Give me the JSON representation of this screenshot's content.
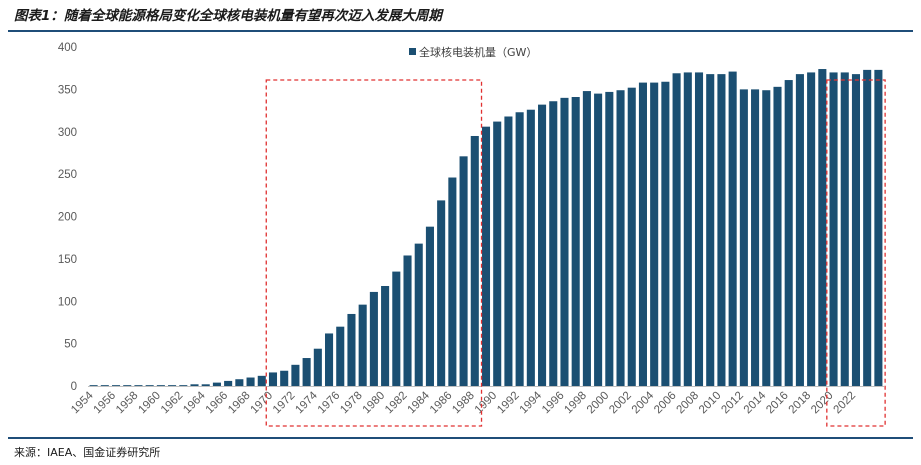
{
  "header": {
    "title": "图表1：随着全球能源格局变化全球核电装机量有望再次迈入发展大周期"
  },
  "footer": {
    "source": "来源：IAEA、国金证券研究所"
  },
  "chart_data": {
    "type": "bar",
    "title": "",
    "xlabel": "",
    "ylabel": "",
    "ylim": [
      0,
      400
    ],
    "yticks": [
      0,
      50,
      100,
      150,
      200,
      250,
      300,
      350,
      400
    ],
    "grid": false,
    "legend_position": "top-center",
    "bar_color": "#1b4f72",
    "highlight_color": "#e03030",
    "series": [
      {
        "name": "全球核电装机量（GW）",
        "values": [
          1,
          1,
          1,
          1,
          1,
          1,
          1,
          1,
          1,
          2,
          2,
          4,
          6,
          8,
          10,
          12,
          16,
          18,
          25,
          33,
          44,
          62,
          70,
          85,
          96,
          111,
          118,
          135,
          154,
          168,
          188,
          219,
          246,
          271,
          295,
          306,
          312,
          318,
          323,
          326,
          332,
          336,
          340,
          341,
          348,
          345,
          347,
          349,
          352,
          358,
          358,
          359,
          369,
          370,
          370,
          368,
          368,
          371,
          350,
          350,
          349,
          353,
          361,
          368,
          370,
          374,
          370,
          370,
          368,
          373,
          373
        ]
      }
    ],
    "categories": [
      "1954",
      "1955",
      "1956",
      "1957",
      "1958",
      "1959",
      "1960",
      "1961",
      "1962",
      "1963",
      "1964",
      "1965",
      "1966",
      "1967",
      "1968",
      "1969",
      "1970",
      "1971",
      "1972",
      "1973",
      "1974",
      "1975",
      "1976",
      "1977",
      "1978",
      "1979",
      "1980",
      "1981",
      "1982",
      "1983",
      "1984",
      "1985",
      "1986",
      "1987",
      "1988",
      "1989",
      "1990",
      "1991",
      "1992",
      "1993",
      "1994",
      "1995",
      "1996",
      "1997",
      "1998",
      "1999",
      "2000",
      "2001",
      "2002",
      "2003",
      "2004",
      "2005",
      "2006",
      "2007",
      "2008",
      "2009",
      "2010",
      "2011",
      "2012",
      "2013",
      "2014",
      "2015",
      "2016",
      "2017",
      "2018",
      "2019",
      "2020",
      "2021",
      "2022",
      "2023",
      "2024"
    ],
    "x_tick_labels": [
      "1954",
      "1956",
      "1958",
      "1960",
      "1962",
      "1964",
      "1966",
      "1968",
      "1970",
      "1972",
      "1974",
      "1976",
      "1978",
      "1980",
      "1982",
      "1984",
      "1986",
      "1988",
      "1990",
      "1992",
      "1994",
      "1996",
      "1998",
      "2000",
      "2002",
      "2004",
      "2006",
      "2008",
      "2010",
      "2012",
      "2014",
      "2016",
      "2018",
      "2020",
      "2022"
    ],
    "highlight_ranges": [
      [
        "1970",
        "1988"
      ],
      [
        "2020",
        "2024"
      ]
    ]
  }
}
